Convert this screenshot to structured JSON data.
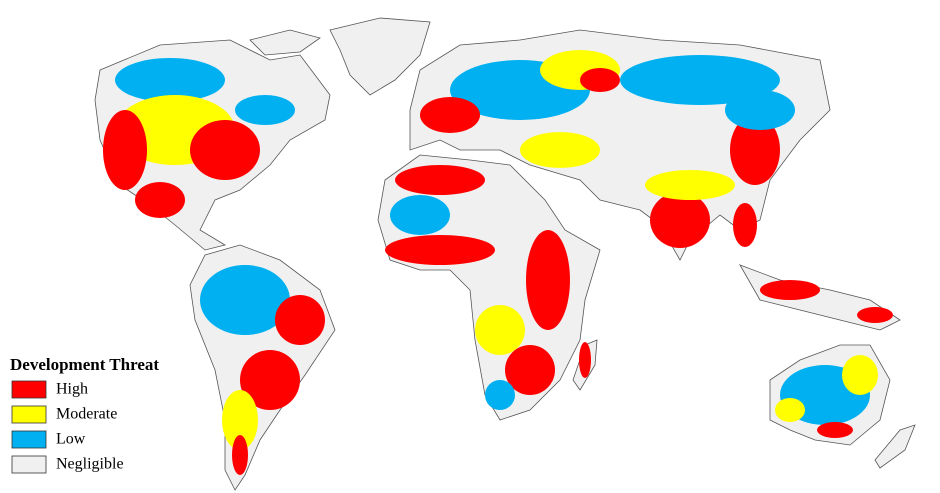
{
  "legend": {
    "title": "Development Threat",
    "items": [
      {
        "label": "High",
        "color": "#ff0000"
      },
      {
        "label": "Moderate",
        "color": "#ffff00"
      },
      {
        "label": "Low",
        "color": "#00b0f0"
      },
      {
        "label": "Negligible",
        "color": "#f0f0f0"
      }
    ]
  }
}
